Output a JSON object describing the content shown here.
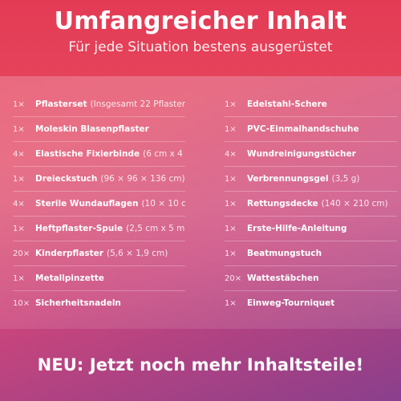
{
  "header": {
    "title": "Umfangreicher Inhalt",
    "subtitle": "Für jede Situation bestens ausgerüstet"
  },
  "left_items": [
    {
      "qty": "1×",
      "name": "Pflasterset",
      "detail": "(Insgesamt 22 Pflaster)"
    },
    {
      "qty": "1×",
      "name": "Moleskin Blasenpflaster",
      "detail": ""
    },
    {
      "qty": "4×",
      "name": "Elastische Fixierbinde",
      "detail": "(6 cm x 4 m)"
    },
    {
      "qty": "1×",
      "name": "Dreieckstuch",
      "detail": "(96 × 96 × 136 cm)"
    },
    {
      "qty": "4×",
      "name": "Sterile Wundauflagen",
      "detail": "(10 × 10 cm)"
    },
    {
      "qty": "1×",
      "name": "Heftpflaster-Spule",
      "detail": "(2,5 cm x 5 m)"
    },
    {
      "qty": "20×",
      "name": "Kinderpflaster",
      "detail": "(5,6 × 1,9 cm)"
    },
    {
      "qty": "1×",
      "name": "Metallpinzette",
      "detail": ""
    },
    {
      "qty": "10×",
      "name": "Sicherheitsnadeln",
      "detail": ""
    }
  ],
  "right_items": [
    {
      "qty": "1×",
      "name": "Edelstahl-Schere",
      "detail": ""
    },
    {
      "qty": "1×",
      "name": "PVC-Einmalhandschuhe",
      "detail": ""
    },
    {
      "qty": "4×",
      "name": "Wundreinigungstücher",
      "detail": ""
    },
    {
      "qty": "1×",
      "name": "Verbrennungsgel",
      "detail": "(3,5 g)"
    },
    {
      "qty": "1×",
      "name": "Rettungsdecke",
      "detail": "(140 × 210 cm)"
    },
    {
      "qty": "1×",
      "name": "Erste-Hilfe-Anleitung",
      "detail": ""
    },
    {
      "qty": "1×",
      "name": "Beatmungstuch",
      "detail": ""
    },
    {
      "qty": "20×",
      "name": "Wattestäbchen",
      "detail": ""
    },
    {
      "qty": "1×",
      "name": "Einweg-Tourniquet",
      "detail": ""
    }
  ],
  "footer": {
    "text": "NEU: Jetzt noch mehr Inhaltsteile!"
  }
}
